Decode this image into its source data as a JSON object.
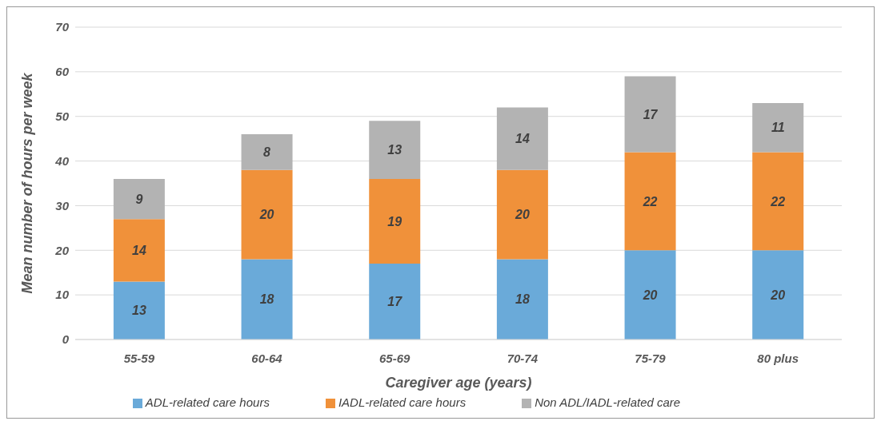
{
  "chart_data": {
    "type": "bar",
    "xlabel": "Caregiver age (years)",
    "ylabel": "Mean number of hours per week",
    "categories": [
      "55-59",
      "60-64",
      "65-69",
      "70-74",
      "75-79",
      "80 plus"
    ],
    "series": [
      {
        "name": "ADL-related care hours",
        "color": "#6aaad9",
        "values": [
          13,
          18,
          17,
          18,
          20,
          20
        ]
      },
      {
        "name": "IADL-related care hours",
        "color": "#f0913a",
        "values": [
          14,
          20,
          19,
          20,
          22,
          22
        ]
      },
      {
        "name": "Non ADL/IADL-related care",
        "color": "#b3b3b3",
        "values": [
          9,
          8,
          13,
          14,
          17,
          11
        ]
      }
    ],
    "stacked": true,
    "ylim": [
      0,
      70
    ],
    "yticks": [
      0,
      10,
      20,
      30,
      40,
      50,
      60,
      70
    ],
    "grid": "y",
    "legend": "bottom",
    "data_labels": true
  }
}
